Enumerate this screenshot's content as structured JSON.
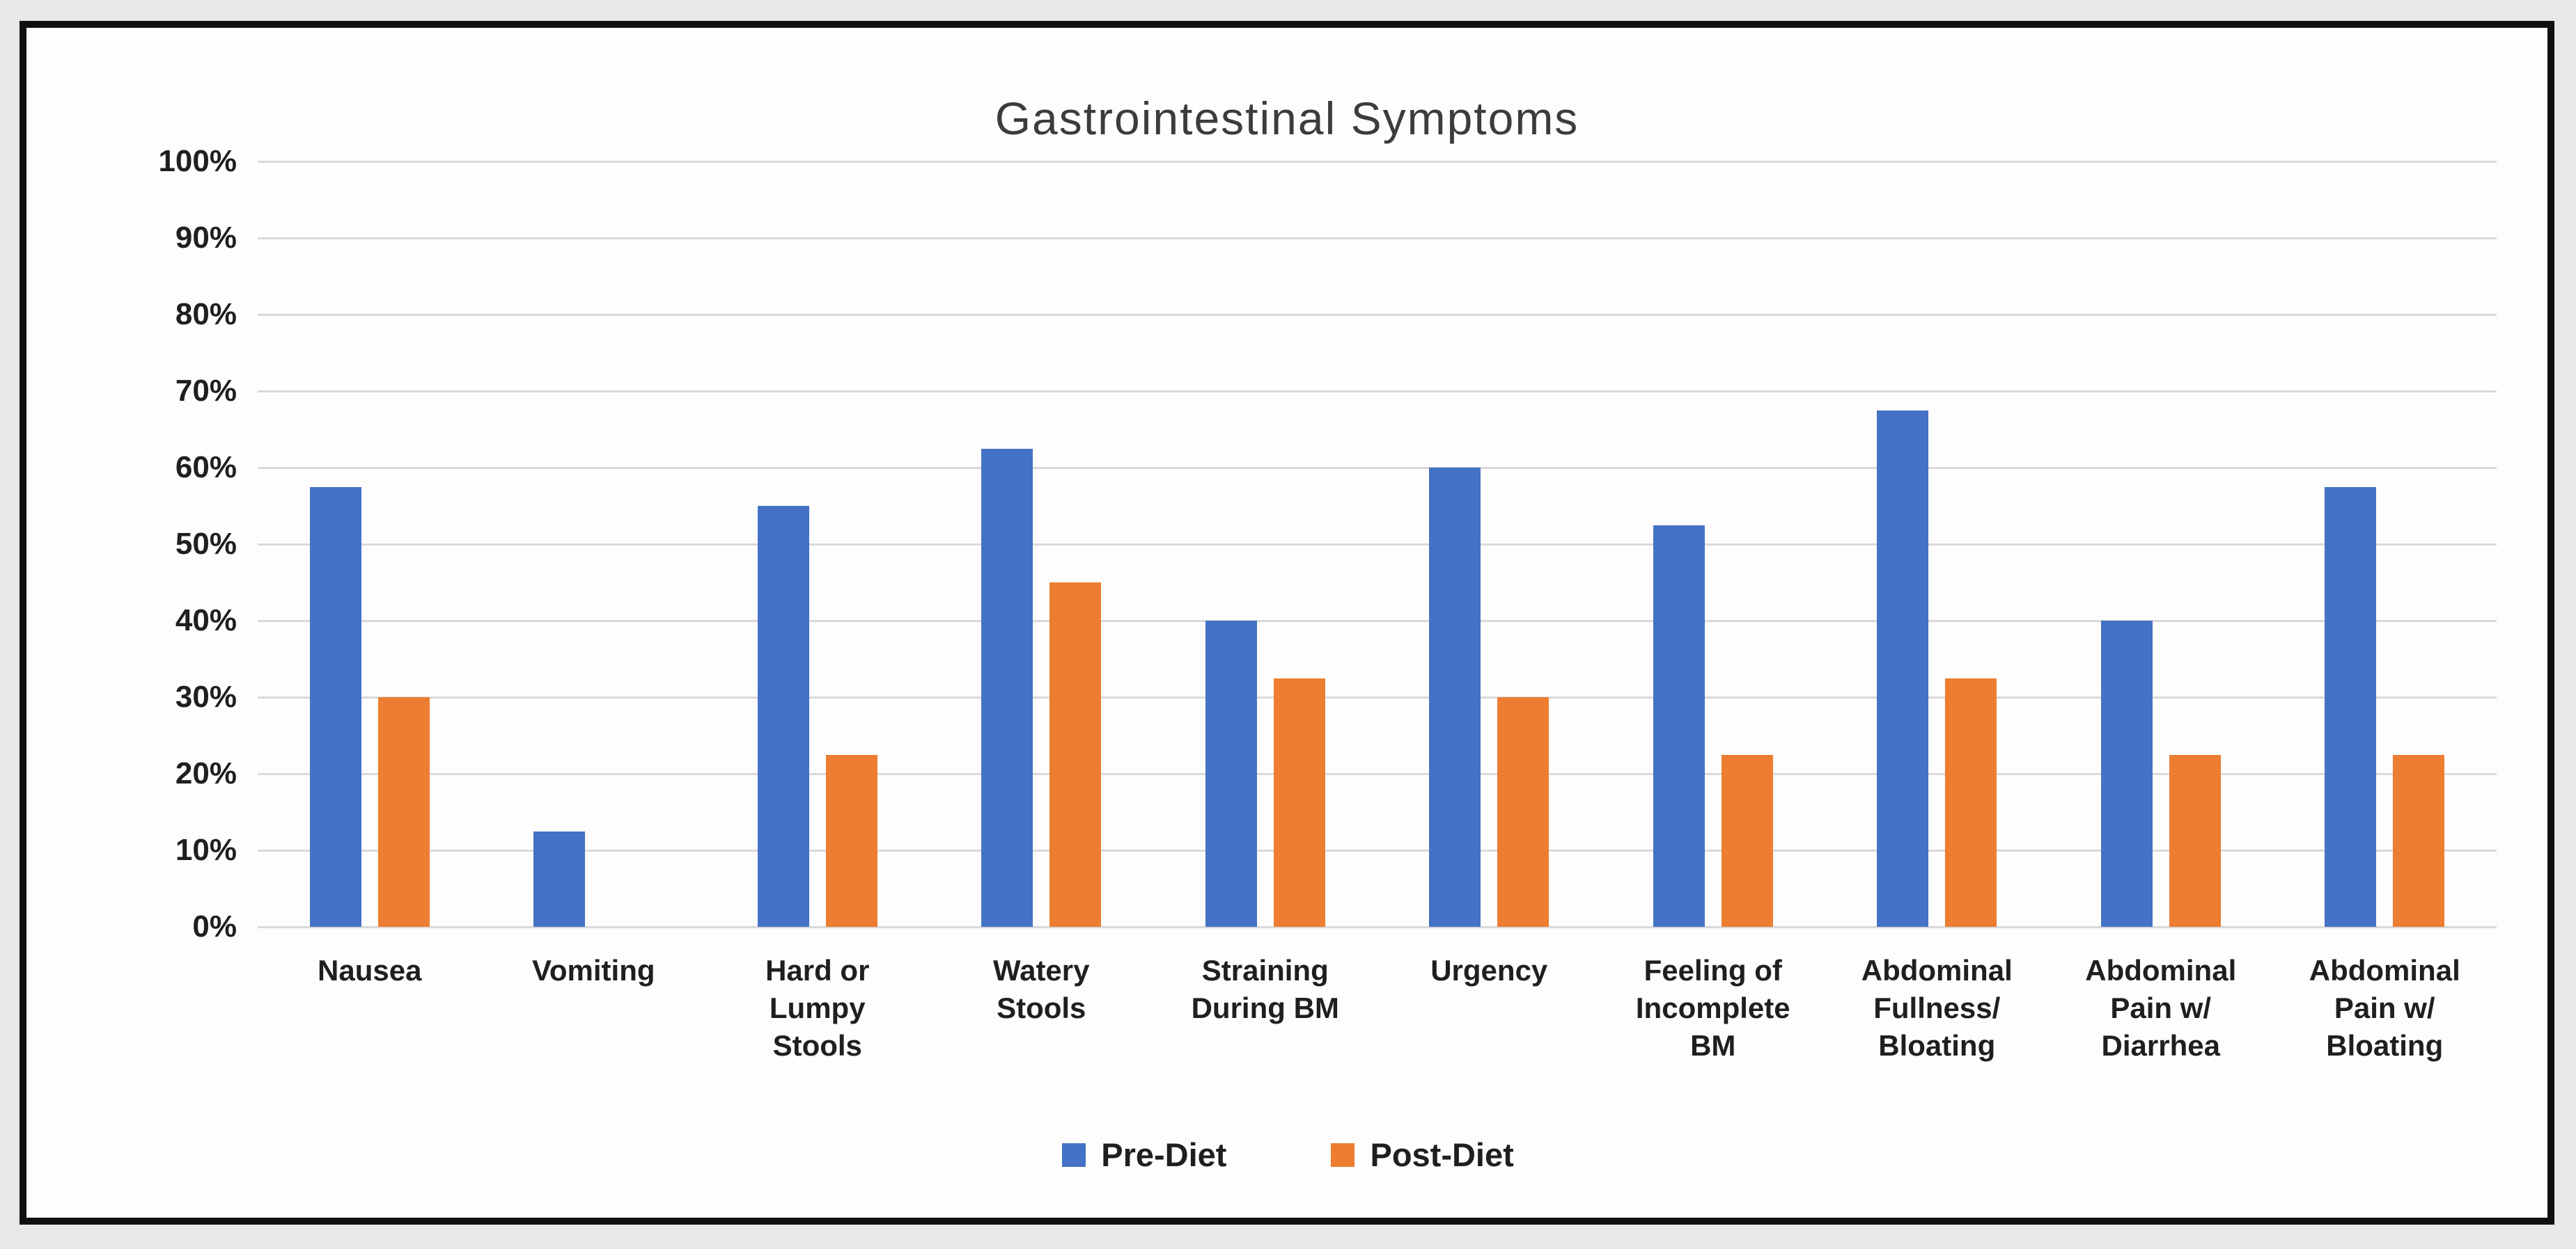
{
  "page": {
    "background": "#e8e8e8",
    "frame_border_color": "#101010",
    "canvas_color": "#fdfdfd",
    "gridline_color": "#d9d9d9",
    "text_color": "#1f1f1f",
    "title_color": "#3c3c3c"
  },
  "chart_data": {
    "type": "bar",
    "title": "Gastrointestinal Symptoms",
    "xlabel": "",
    "ylabel": "",
    "ylim": [
      0,
      100
    ],
    "y_tick_step": 10,
    "y_tick_labels": [
      "100%",
      "90%",
      "80%",
      "70%",
      "60%",
      "50%",
      "40%",
      "30%",
      "20%",
      "10%",
      "0%"
    ],
    "grid": true,
    "legend_position": "bottom",
    "categories": [
      "Nausea",
      "Vomiting",
      "Hard or Lumpy Stools",
      "Watery Stools",
      "Straining During BM",
      "Urgency",
      "Feeling of Incomplete BM",
      "Abdominal Fullness/ Bloating",
      "Abdominal Pain w/ Diarrhea",
      "Abdominal Pain w/ Bloating"
    ],
    "category_label_lines": [
      [
        "Nausea"
      ],
      [
        "Vomiting"
      ],
      [
        "Hard or",
        "Lumpy",
        "Stools"
      ],
      [
        "Watery",
        "Stools"
      ],
      [
        "Straining",
        "During BM"
      ],
      [
        "Urgency"
      ],
      [
        "Feeling of",
        "Incomplete",
        "BM"
      ],
      [
        "Abdominal",
        "Fullness/",
        "Bloating"
      ],
      [
        "Abdominal",
        "Pain w/",
        "Diarrhea"
      ],
      [
        "Abdominal",
        "Pain w/",
        "Bloating"
      ]
    ],
    "series": [
      {
        "name": "Pre-Diet",
        "color": "#4472C4",
        "values": [
          57.5,
          12.5,
          55,
          62.5,
          40,
          60,
          52.5,
          67.5,
          40,
          57.5
        ]
      },
      {
        "name": "Post-Diet",
        "color": "#ED7D31",
        "values": [
          30,
          0,
          22.5,
          45,
          32.5,
          30,
          22.5,
          32.5,
          22.5,
          22.5
        ]
      }
    ]
  }
}
